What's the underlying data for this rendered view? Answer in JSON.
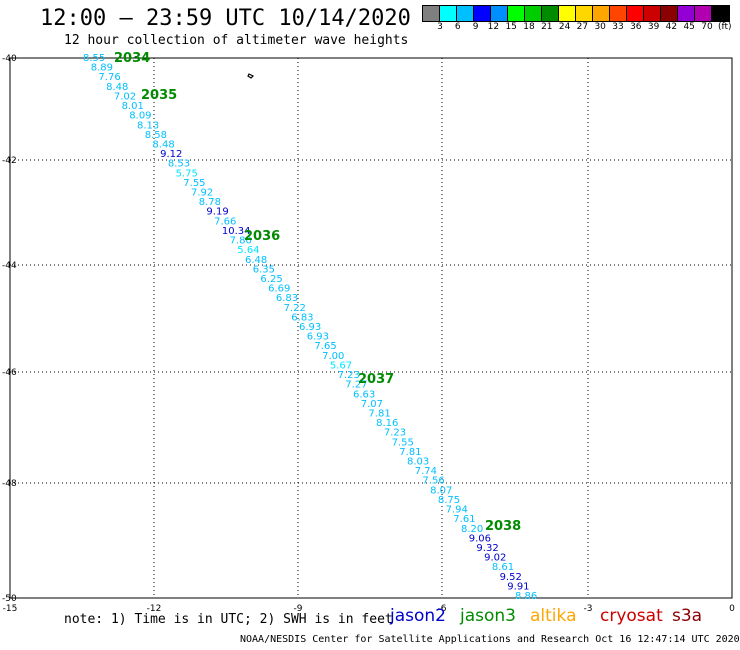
{
  "header": {
    "title": "12:00 – 23:59 UTC 10/14/2020",
    "subtitle": "12 hour collection of altimeter wave heights"
  },
  "colorbar": {
    "colors": [
      "#7f7f7f",
      "#00ffff",
      "#00bfff",
      "#0000ff",
      "#008fff",
      "#00ff00",
      "#00cd00",
      "#008b00",
      "#ffff00",
      "#ffd700",
      "#ffa500",
      "#ff4500",
      "#ff0000",
      "#cd0000",
      "#8b0000",
      "#9400d3",
      "#b000b0",
      "#000000"
    ],
    "labels": [
      "3",
      "6",
      "9",
      "12",
      "15",
      "18",
      "21",
      "24",
      "27",
      "30",
      "33",
      "36",
      "39",
      "42",
      "45",
      "70"
    ],
    "unit": "(ft)"
  },
  "axes": {
    "x_ticks": [
      "-15",
      "-12",
      "-9",
      "-6",
      "-3",
      "0"
    ],
    "y_ticks": [
      "-40",
      "-42",
      "-44",
      "-46",
      "-48",
      "-50"
    ]
  },
  "track": {
    "wave_heights": [
      {
        "v": "8.55",
        "c": "#00bfff"
      },
      {
        "v": "8.89",
        "c": "#00bfff"
      },
      {
        "v": "7.76",
        "c": "#00bfff"
      },
      {
        "v": "8.48",
        "c": "#00bfff"
      },
      {
        "v": "7.02",
        "c": "#00bfff"
      },
      {
        "v": "8.01",
        "c": "#00bfff"
      },
      {
        "v": "8.09",
        "c": "#00bfff"
      },
      {
        "v": "8.13",
        "c": "#00bfff"
      },
      {
        "v": "8.58",
        "c": "#00bfff"
      },
      {
        "v": "8.48",
        "c": "#00bfff"
      },
      {
        "v": "9.12",
        "c": "#0000cd"
      },
      {
        "v": "8.53",
        "c": "#00bfff"
      },
      {
        "v": "5.75",
        "c": "#00e5ff"
      },
      {
        "v": "7.55",
        "c": "#00bfff"
      },
      {
        "v": "7.92",
        "c": "#00bfff"
      },
      {
        "v": "8.78",
        "c": "#00bfff"
      },
      {
        "v": "9.19",
        "c": "#0000cd"
      },
      {
        "v": "7.66",
        "c": "#00bfff"
      },
      {
        "v": "10.34",
        "c": "#0000cd"
      },
      {
        "v": "7.80",
        "c": "#00bfff"
      },
      {
        "v": "5.64",
        "c": "#00e5ff"
      },
      {
        "v": "6.48",
        "c": "#00bfff"
      },
      {
        "v": "6.35",
        "c": "#00bfff"
      },
      {
        "v": "6.25",
        "c": "#00bfff"
      },
      {
        "v": "6.69",
        "c": "#00bfff"
      },
      {
        "v": "6.83",
        "c": "#00bfff"
      },
      {
        "v": "7.22",
        "c": "#00bfff"
      },
      {
        "v": "6.83",
        "c": "#00bfff"
      },
      {
        "v": "6.93",
        "c": "#00bfff"
      },
      {
        "v": "6.93",
        "c": "#00bfff"
      },
      {
        "v": "7.65",
        "c": "#00bfff"
      },
      {
        "v": "7.00",
        "c": "#00bfff"
      },
      {
        "v": "5.67",
        "c": "#00e5ff"
      },
      {
        "v": "7.23",
        "c": "#00bfff"
      },
      {
        "v": "7.27",
        "c": "#00bfff"
      },
      {
        "v": "6.63",
        "c": "#00bfff"
      },
      {
        "v": "7.07",
        "c": "#00bfff"
      },
      {
        "v": "7.81",
        "c": "#00bfff"
      },
      {
        "v": "8.16",
        "c": "#00bfff"
      },
      {
        "v": "7.23",
        "c": "#00bfff"
      },
      {
        "v": "7.55",
        "c": "#00bfff"
      },
      {
        "v": "7.81",
        "c": "#00bfff"
      },
      {
        "v": "8.03",
        "c": "#00bfff"
      },
      {
        "v": "7.74",
        "c": "#00bfff"
      },
      {
        "v": "7.56",
        "c": "#00bfff"
      },
      {
        "v": "8.07",
        "c": "#00bfff"
      },
      {
        "v": "8.75",
        "c": "#00bfff"
      },
      {
        "v": "7.94",
        "c": "#00bfff"
      },
      {
        "v": "7.61",
        "c": "#00bfff"
      },
      {
        "v": "8.20",
        "c": "#00bfff"
      },
      {
        "v": "9.06",
        "c": "#0000cd"
      },
      {
        "v": "9.32",
        "c": "#0000cd"
      },
      {
        "v": "9.02",
        "c": "#0000cd"
      },
      {
        "v": "8.61",
        "c": "#00bfff"
      },
      {
        "v": "9.52",
        "c": "#0000cd"
      },
      {
        "v": "9.91",
        "c": "#0000cd"
      },
      {
        "v": "8.86",
        "c": "#00bfff"
      }
    ],
    "times": [
      "2034",
      "2035",
      "2036",
      "2037",
      "2038"
    ]
  },
  "note": "note: 1) Time is in UTC; 2) SWH is in feet",
  "satellites": [
    {
      "name": "jason2",
      "color": "#0000cd"
    },
    {
      "name": "jason3",
      "color": "#008b00"
    },
    {
      "name": "altika",
      "color": "#ffa500"
    },
    {
      "name": "cryosat",
      "color": "#cd0000"
    },
    {
      "name": "s3a",
      "color": "#8b0000"
    }
  ],
  "footer": "NOAA/NESDIS Center for Satellite Applications and Research   Oct 16 12:47:14 UTC 2020"
}
